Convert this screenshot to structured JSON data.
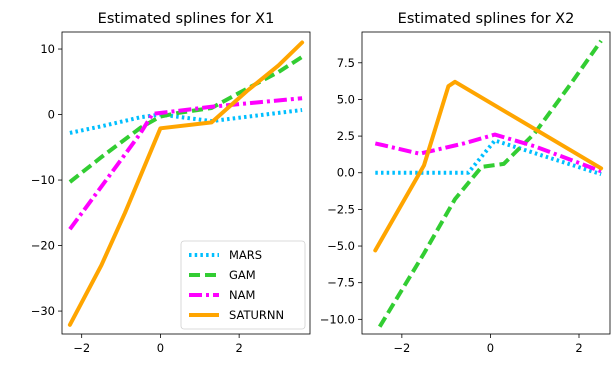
{
  "chart_data": [
    {
      "type": "line",
      "title": "Estimated splines for X1",
      "xlabel": "",
      "ylabel": "",
      "xlim": [
        -2.5,
        3.8
      ],
      "ylim": [
        -33.5,
        12.6
      ],
      "xticks": [
        -2,
        0,
        2
      ],
      "xtick_labels": [
        "−2",
        "0",
        "2"
      ],
      "yticks": [
        -30,
        -20,
        -10,
        0,
        10
      ],
      "ytick_labels": [
        "−30",
        "−20",
        "−10",
        "0",
        "10"
      ],
      "grid": false,
      "legend": "lower-right",
      "series": [
        {
          "name": "MARS",
          "color": "#00bfff",
          "style": "dotted",
          "x": [
            -2.3,
            -1.5,
            -0.5,
            0.0,
            1.3,
            3.6
          ],
          "y": [
            -2.8,
            -1.8,
            -0.4,
            0.0,
            -1.0,
            0.7
          ]
        },
        {
          "name": "GAM",
          "color": "#32cd32",
          "style": "dashed",
          "x": [
            -2.3,
            -1.5,
            -0.5,
            0.0,
            0.5,
            1.3,
            2.0,
            3.0,
            3.6
          ],
          "y": [
            -10.3,
            -6.5,
            -2.0,
            -0.3,
            0.3,
            1.0,
            3.3,
            6.5,
            8.8
          ]
        },
        {
          "name": "NAM",
          "color": "#ff00ff",
          "style": "dashdot",
          "x": [
            -2.3,
            -1.5,
            -0.5,
            -0.2,
            0.5,
            1.3,
            2.0,
            3.6
          ],
          "y": [
            -17.5,
            -11.0,
            -2.8,
            0.1,
            0.6,
            1.2,
            1.6,
            2.5
          ]
        },
        {
          "name": "SATURNN",
          "color": "#ffa500",
          "style": "solid",
          "x": [
            -2.3,
            -1.5,
            -0.9,
            0.0,
            1.3,
            2.2,
            3.0,
            3.6
          ],
          "y": [
            -32.1,
            -23.0,
            -15.0,
            -2.1,
            -1.2,
            3.6,
            7.5,
            11.0
          ]
        }
      ]
    },
    {
      "type": "line",
      "title": "Estimated splines for X2",
      "xlabel": "",
      "ylabel": "",
      "xlim": [
        -2.9,
        2.7
      ],
      "ylim": [
        -11.0,
        9.6
      ],
      "xticks": [
        -2,
        0,
        2
      ],
      "xtick_labels": [
        "−2",
        "0",
        "2"
      ],
      "yticks": [
        -10.0,
        -7.5,
        -5.0,
        -2.5,
        0.0,
        2.5,
        5.0,
        7.5
      ],
      "ytick_labels": [
        "−10.0",
        "−7.5",
        "−5.0",
        "−2.5",
        "0.0",
        "2.5",
        "5.0",
        "7.5"
      ],
      "grid": false,
      "series": [
        {
          "name": "MARS",
          "color": "#00bfff",
          "style": "dotted",
          "x": [
            -2.6,
            -0.5,
            0.1,
            2.5
          ],
          "y": [
            0.0,
            0.0,
            2.2,
            -0.1
          ]
        },
        {
          "name": "GAM",
          "color": "#32cd32",
          "style": "dashed",
          "x": [
            -2.5,
            -1.5,
            -0.8,
            -0.2,
            0.3,
            1.0,
            1.8,
            2.5
          ],
          "y": [
            -10.5,
            -5.5,
            -1.8,
            0.4,
            0.6,
            2.7,
            6.0,
            9.0
          ]
        },
        {
          "name": "NAM",
          "color": "#ff00ff",
          "style": "dashdot",
          "x": [
            -2.6,
            -1.6,
            -0.6,
            0.1,
            1.0,
            2.5
          ],
          "y": [
            2.0,
            1.3,
            2.0,
            2.6,
            1.8,
            0.1
          ]
        },
        {
          "name": "SATURNN",
          "color": "#ffa500",
          "style": "solid",
          "x": [
            -2.6,
            -1.5,
            -0.95,
            -0.8,
            2.5
          ],
          "y": [
            -5.3,
            0.5,
            5.9,
            6.2,
            0.3
          ]
        }
      ]
    }
  ]
}
